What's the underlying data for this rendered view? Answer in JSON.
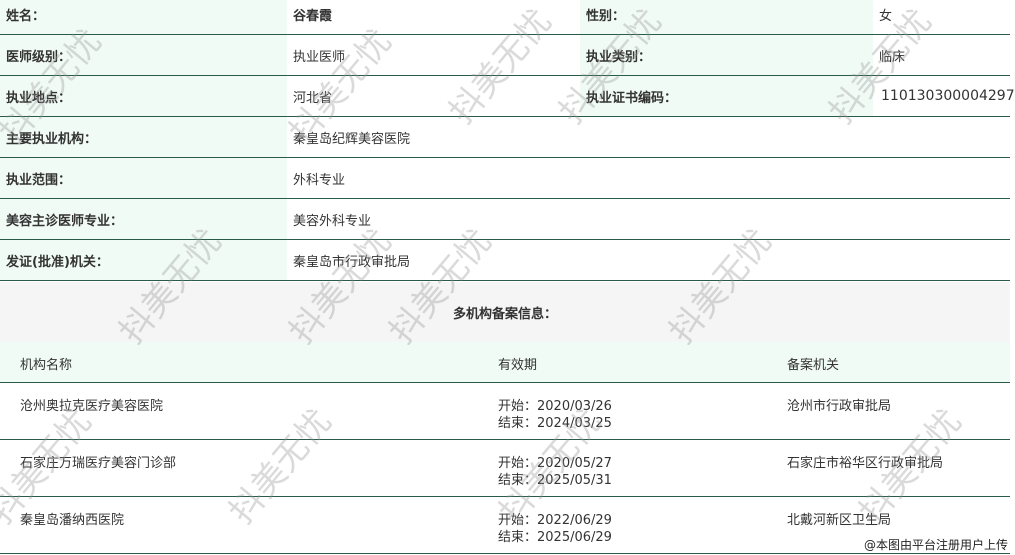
{
  "profile": {
    "name_label": "姓名：",
    "name": "谷春霞",
    "gender_label": "性别：",
    "gender": "女",
    "level_label": "医师级别：",
    "level": "执业医师",
    "category_label": "执业类别：",
    "category": "临床",
    "location_label": "执业地点：",
    "location": "河北省",
    "cert_label": "执业证书编码：",
    "cert": "110130300004297",
    "institution_label": "主要执业机构：",
    "institution": "秦皇岛纪辉美容医院",
    "scope_label": "执业范围：",
    "scope": "外科专业",
    "specialty_label": "美容主诊医师专业：",
    "specialty": "美容外科专业",
    "issuer_label": "发证(批准)机关：",
    "issuer": "秦皇岛市行政审批局"
  },
  "multi": {
    "title": "多机构备案信息：",
    "headers": [
      "机构名称",
      "有效期",
      "备案机关"
    ],
    "rows": [
      {
        "name": "沧州奥拉克医疗美容医院",
        "start": "开始：2020/03/26",
        "end": "结束：2024/03/25",
        "authority": "沧州市行政审批局"
      },
      {
        "name": "石家庄万瑞医疗美容门诊部",
        "start": "开始：2020/05/27",
        "end": "结束：2025/05/31",
        "authority": "石家庄市裕华区行政审批局"
      },
      {
        "name": "秦皇岛潘纳西医院",
        "start": "开始：2022/06/29",
        "end": "结束：2025/06/29",
        "authority": "北戴河新区卫生局"
      }
    ]
  },
  "watermark": "抖美无忧",
  "credit": "@本图由平台注册用户上传"
}
